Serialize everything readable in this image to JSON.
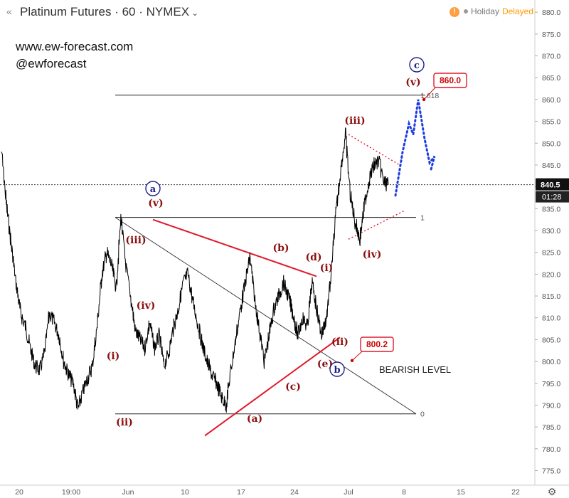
{
  "header": {
    "title": "Platinum Futures · 60 · NYMEX",
    "caret": "⌄",
    "collapse_icon": "«",
    "info_icon": "!",
    "status": "Holiday",
    "delayed": "Delayed"
  },
  "brand": {
    "website": "www.ew-forecast.com",
    "handle": "@ewforecast"
  },
  "colors": {
    "price": "#000000",
    "wave_red": "#8b1010",
    "trendline": "#e0192b",
    "projection": "#1e3de0",
    "price_tag": "#111111"
  },
  "chart_data": {
    "type": "line",
    "title": "Platinum Futures · 60 · NYMEX",
    "ylim": [
      772,
      882
    ],
    "y_ticks": [
      775,
      780,
      785,
      790,
      795,
      800,
      805,
      810,
      815,
      820,
      825,
      830,
      835,
      840,
      845,
      850,
      855,
      860,
      865,
      870,
      875,
      880
    ],
    "x_ticks": [
      "20",
      "19:00",
      "Jun",
      "10",
      "17",
      "24",
      "Jul",
      "8",
      "15",
      "22"
    ],
    "series": [
      {
        "values": [
          848,
          836,
          827,
          818,
          811,
          808,
          803,
          799,
          798,
          802,
          811,
          809,
          806,
          800,
          797,
          795,
          789,
          793,
          796,
          799,
          808,
          820,
          825,
          822,
          817,
          833,
          822,
          815,
          807,
          805,
          803,
          809,
          803,
          806,
          799,
          802,
          808,
          812,
          818,
          820,
          814,
          809,
          804,
          800,
          797,
          795,
          792,
          790,
          798,
          805,
          812,
          818,
          824,
          814,
          807,
          800,
          806,
          812,
          815,
          818,
          815,
          811,
          806,
          810,
          808,
          818,
          812,
          806,
          810,
          820,
          834,
          844,
          852,
          838,
          832,
          828,
          836,
          842,
          845,
          846,
          841,
          840.5
        ]
      }
    ],
    "current_price": 840.5,
    "countdown": "01:28",
    "levels": [
      {
        "label": "1.618",
        "value": 861
      },
      {
        "label": "1",
        "value": 833
      },
      {
        "label": "0",
        "value": 788
      }
    ],
    "callouts": [
      {
        "label": "860.0",
        "value": 860.0
      },
      {
        "label": "800.2",
        "value": 800.2
      }
    ],
    "annotations": {
      "waves_red": [
        "(i)",
        "(ii)",
        "(iii)",
        "(iv)",
        "(v)",
        "(a)",
        "(b)",
        "(c)",
        "(d)",
        "(e)",
        "(i)",
        "(ii)",
        "(iii)",
        "(iv)",
        "(v)"
      ],
      "waves_blue": [
        "a",
        "b",
        "c"
      ],
      "note": "BEARISH LEVEL"
    }
  }
}
